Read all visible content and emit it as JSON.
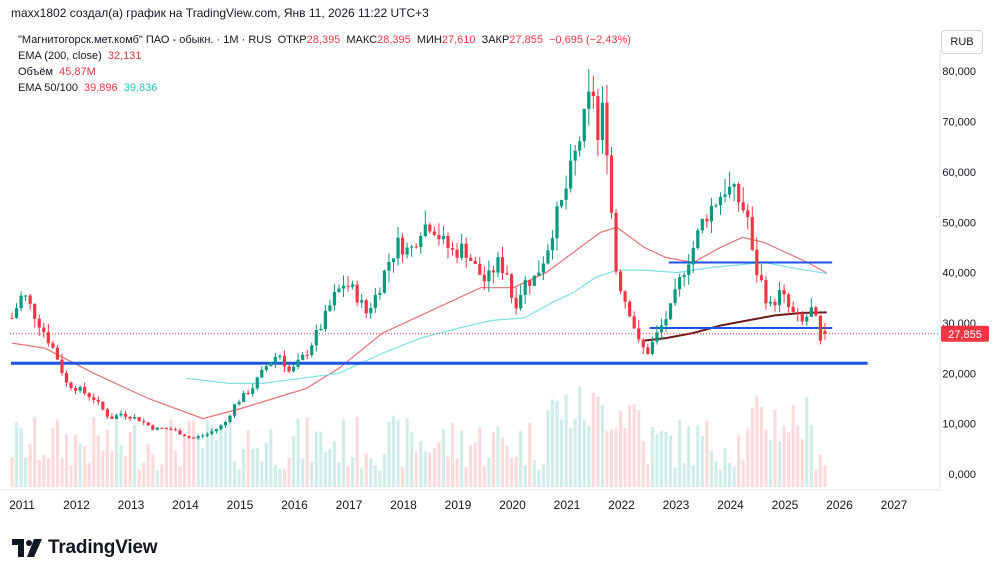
{
  "header": {
    "author_line": "maxx1802 создал(а) график на TradingView.com, Янв 11, 2026 11:22 UTC+3"
  },
  "legend": {
    "symbol": "\"Магнитогорск.мет.комб\" ПАО - обыкн. · 1M · RUS",
    "open_label": "ОТКР",
    "open_value": "28,395",
    "high_label": "МАКС",
    "high_value": "28,395",
    "low_label": "МИН",
    "low_value": "27,610",
    "close_label": "ЗАКР",
    "close_value": "27,855",
    "change": "−0,695 (−2,43%)",
    "ema200_label": "EMA (200, close)",
    "ema200_value": "32,131",
    "volume_label": "Объём",
    "volume_value": "45,87M",
    "ema50_100_label": "EMA 50/100",
    "ema50_value": "39,896",
    "ema100_value": "39,836"
  },
  "currency_button": "RUB",
  "logo_text": "TradingView",
  "colors": {
    "up": "#089981",
    "down": "#f23645",
    "ema50": "#e57373",
    "ema100": "#7fe0e6",
    "ema200": "#6d1b1b",
    "hline": "#1e53e5",
    "price": "#f23645"
  },
  "chart_data": {
    "type": "candlestick",
    "title": "\"Магнитогорск.мет.комб\" ПАО - обыкн. · 1M · RUS",
    "x_range": [
      2011.0,
      2027.5
    ],
    "ylim": [
      -3,
      83
    ],
    "y_ticks": [
      "0,000",
      "10,000",
      "20,000",
      "30,000",
      "40,000",
      "50,000",
      "60,000",
      "70,000",
      "80,000"
    ],
    "y_tick_values": [
      0,
      10,
      20,
      30,
      40,
      50,
      60,
      70,
      80
    ],
    "x_ticks": [
      "2011",
      "2012",
      "2013",
      "2014",
      "2015",
      "2016",
      "2017",
      "2018",
      "2019",
      "2020",
      "2021",
      "2022",
      "2023",
      "2024",
      "2025",
      "2026",
      "2027"
    ],
    "x_tick_values": [
      2011,
      2012,
      2013,
      2014,
      2015,
      2016,
      2017,
      2018,
      2019,
      2020,
      2021,
      2022,
      2023,
      2024,
      2025,
      2026,
      2027
    ],
    "last_price": 27.855,
    "last_price_label": "27,855",
    "price_path": [
      [
        2011.0,
        31
      ],
      [
        2011.2,
        36
      ],
      [
        2011.5,
        30
      ],
      [
        2011.8,
        24
      ],
      [
        2012.0,
        18
      ],
      [
        2012.2,
        17
      ],
      [
        2012.5,
        15
      ],
      [
        2012.8,
        11
      ],
      [
        2013.0,
        12
      ],
      [
        2013.3,
        11
      ],
      [
        2013.6,
        9
      ],
      [
        2013.9,
        9
      ],
      [
        2014.1,
        8
      ],
      [
        2014.3,
        7
      ],
      [
        2014.6,
        8
      ],
      [
        2014.9,
        10
      ],
      [
        2015.1,
        14
      ],
      [
        2015.4,
        17
      ],
      [
        2015.7,
        22
      ],
      [
        2015.9,
        24
      ],
      [
        2016.1,
        20
      ],
      [
        2016.4,
        24
      ],
      [
        2016.7,
        30
      ],
      [
        2016.9,
        35
      ],
      [
        2017.1,
        38
      ],
      [
        2017.3,
        36
      ],
      [
        2017.5,
        32
      ],
      [
        2017.7,
        36
      ],
      [
        2017.9,
        42
      ],
      [
        2018.1,
        46
      ],
      [
        2018.3,
        44
      ],
      [
        2018.5,
        49
      ],
      [
        2018.7,
        50
      ],
      [
        2018.9,
        46
      ],
      [
        2019.1,
        44
      ],
      [
        2019.3,
        45
      ],
      [
        2019.5,
        41
      ],
      [
        2019.7,
        38
      ],
      [
        2019.9,
        42
      ],
      [
        2020.1,
        40
      ],
      [
        2020.2,
        33
      ],
      [
        2020.4,
        38
      ],
      [
        2020.6,
        39
      ],
      [
        2020.8,
        44
      ],
      [
        2020.95,
        50
      ],
      [
        2021.1,
        54
      ],
      [
        2021.3,
        62
      ],
      [
        2021.45,
        68
      ],
      [
        2021.55,
        72
      ],
      [
        2021.65,
        78
      ],
      [
        2021.75,
        66
      ],
      [
        2021.85,
        73
      ],
      [
        2021.95,
        62
      ],
      [
        2022.05,
        42
      ],
      [
        2022.2,
        36
      ],
      [
        2022.35,
        32
      ],
      [
        2022.5,
        26
      ],
      [
        2022.65,
        24
      ],
      [
        2022.8,
        27
      ],
      [
        2022.95,
        30
      ],
      [
        2023.1,
        33
      ],
      [
        2023.3,
        40
      ],
      [
        2023.5,
        45
      ],
      [
        2023.7,
        51
      ],
      [
        2023.9,
        54
      ],
      [
        2024.1,
        57
      ],
      [
        2024.3,
        55
      ],
      [
        2024.5,
        51
      ],
      [
        2024.6,
        42
      ],
      [
        2024.75,
        38
      ],
      [
        2024.9,
        33
      ],
      [
        2025.1,
        36
      ],
      [
        2025.3,
        32
      ],
      [
        2025.5,
        30
      ],
      [
        2025.7,
        33
      ],
      [
        2025.85,
        25
      ],
      [
        2025.95,
        27.855
      ]
    ],
    "ema50": [
      [
        2011.0,
        26
      ],
      [
        2011.6,
        25
      ],
      [
        2012.5,
        20
      ],
      [
        2013.5,
        15
      ],
      [
        2014.5,
        11
      ],
      [
        2015.2,
        13
      ],
      [
        2015.8,
        15
      ],
      [
        2016.4,
        17
      ],
      [
        2017.0,
        21
      ],
      [
        2017.8,
        28
      ],
      [
        2018.4,
        31
      ],
      [
        2019.0,
        34
      ],
      [
        2019.6,
        37
      ],
      [
        2020.2,
        37
      ],
      [
        2020.8,
        40
      ],
      [
        2021.3,
        44
      ],
      [
        2021.8,
        48
      ],
      [
        2022.1,
        49
      ],
      [
        2022.6,
        45
      ],
      [
        2023.0,
        43
      ],
      [
        2023.5,
        42
      ],
      [
        2024.0,
        45
      ],
      [
        2024.4,
        47
      ],
      [
        2024.8,
        46
      ],
      [
        2025.2,
        44
      ],
      [
        2025.6,
        42
      ],
      [
        2025.95,
        39.9
      ]
    ],
    "ema100": [
      [
        2014.2,
        19
      ],
      [
        2015.0,
        18
      ],
      [
        2015.6,
        18
      ],
      [
        2016.3,
        19
      ],
      [
        2017.0,
        20
      ],
      [
        2017.8,
        24
      ],
      [
        2018.5,
        27
      ],
      [
        2019.2,
        29
      ],
      [
        2019.8,
        30.5
      ],
      [
        2020.4,
        31
      ],
      [
        2020.9,
        34
      ],
      [
        2021.3,
        36
      ],
      [
        2021.7,
        39
      ],
      [
        2022.1,
        40.5
      ],
      [
        2022.6,
        40.5
      ],
      [
        2023.2,
        40
      ],
      [
        2023.8,
        41
      ],
      [
        2024.3,
        41.5
      ],
      [
        2024.8,
        42
      ],
      [
        2025.3,
        41
      ],
      [
        2025.95,
        39.8
      ]
    ],
    "ema200": [
      [
        2022.6,
        26.5
      ],
      [
        2023.0,
        27
      ],
      [
        2023.5,
        28
      ],
      [
        2024.0,
        29.5
      ],
      [
        2024.5,
        30.5
      ],
      [
        2025.0,
        31.5
      ],
      [
        2025.5,
        32
      ],
      [
        2025.95,
        32.1
      ]
    ],
    "hlines": [
      {
        "y": 22.0,
        "x0": 2010.98,
        "x1": 2026.7
      },
      {
        "y": 42.0,
        "x0": 2023.05,
        "x1": 2026.05
      },
      {
        "y": 29.0,
        "x0": 2022.7,
        "x1": 2026.05
      }
    ],
    "volume_scale_max": 20,
    "legend_entries": [
      "EMA (200, close)",
      "Объём",
      "EMA 50/100"
    ]
  }
}
